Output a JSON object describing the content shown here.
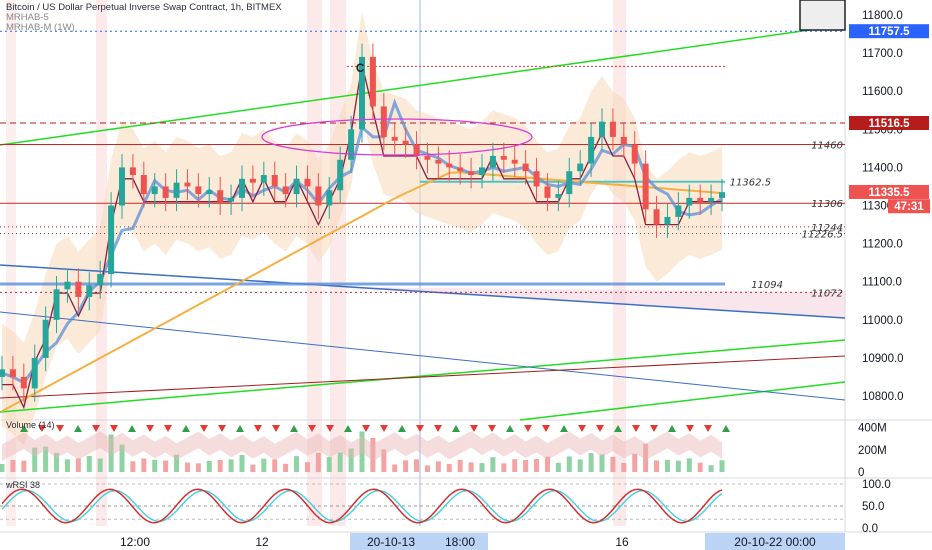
{
  "header": {
    "title": "Bitcoin / US Dollar Perpetual Inverse Swap Contract, 1h, BITMEX",
    "indicator_1": "MRHAB-5",
    "indicator_2": "MRHAB-M (1W)"
  },
  "price_axis": {
    "ticks": [
      "11800.0",
      "11700.0",
      "11600.0",
      "11500.0",
      "11400.0",
      "11300.0",
      "11200.0",
      "11100.0",
      "11000.0",
      "10900.0",
      "10800.0"
    ]
  },
  "price_tags": [
    {
      "label": "11757.5",
      "color": "#2962ff"
    },
    {
      "label": "11516.5",
      "color": "#b71c1c"
    },
    {
      "label": "11335.5",
      "color": "#ef5350"
    },
    {
      "label": "47:31",
      "color": "#ef5350"
    }
  ],
  "level_labels": [
    "11460",
    "11362.5",
    "11306",
    "11244",
    "11226.5",
    "11094",
    "11072"
  ],
  "marker_c": "C",
  "volume_pane": {
    "label": "Volume (14)",
    "ticks": [
      "400M",
      "200M",
      "0"
    ]
  },
  "rsi_pane": {
    "label": "wRSI  38",
    "ticks": [
      "100.0",
      "50.0",
      "0.0"
    ]
  },
  "time_axis": {
    "labels": [
      "12:00",
      "12",
      "18:00",
      "16"
    ],
    "highlight_1": "20-10-13",
    "highlight_2": "20-10-22   00:00"
  },
  "colors": {
    "green_trend": "#22dd22",
    "blue_trend": "#3a6fc4",
    "brown_trend": "#a02020",
    "bull": "#26a69a",
    "bear": "#ef5350",
    "sma_orange": "#f5b041",
    "band_fill": "#f7d9b8",
    "highlight_blue": "#bbd3f5"
  },
  "chart_data": {
    "type": "candlestick",
    "title": "Bitcoin / US Dollar Perpetual Inverse Swap Contract, 1h, BITMEX",
    "ylim": [
      10750,
      11850
    ],
    "close_approx": [
      10870,
      10850,
      10820,
      10900,
      11000,
      11080,
      11100,
      11060,
      11090,
      11120,
      11300,
      11400,
      11380,
      11330,
      11350,
      11320,
      11360,
      11350,
      11330,
      11340,
      11310,
      11320,
      11370,
      11360,
      11380,
      11350,
      11330,
      11370,
      11350,
      11300,
      11340,
      11420,
      11500,
      11690,
      11560,
      11480,
      11470,
      11460,
      11430,
      11420,
      11410,
      11400,
      11390,
      11380,
      11400,
      11430,
      11420,
      11410,
      11390,
      11350,
      11320,
      11330,
      11390,
      11410,
      11480,
      11520,
      11480,
      11460,
      11410,
      11290,
      11250,
      11270,
      11300,
      11320,
      11310,
      11320,
      11335
    ],
    "volume_ticks": [
      "400M",
      "200M",
      "0"
    ],
    "rsi_ticks": [
      "100.0",
      "50.0",
      "0.0"
    ]
  }
}
